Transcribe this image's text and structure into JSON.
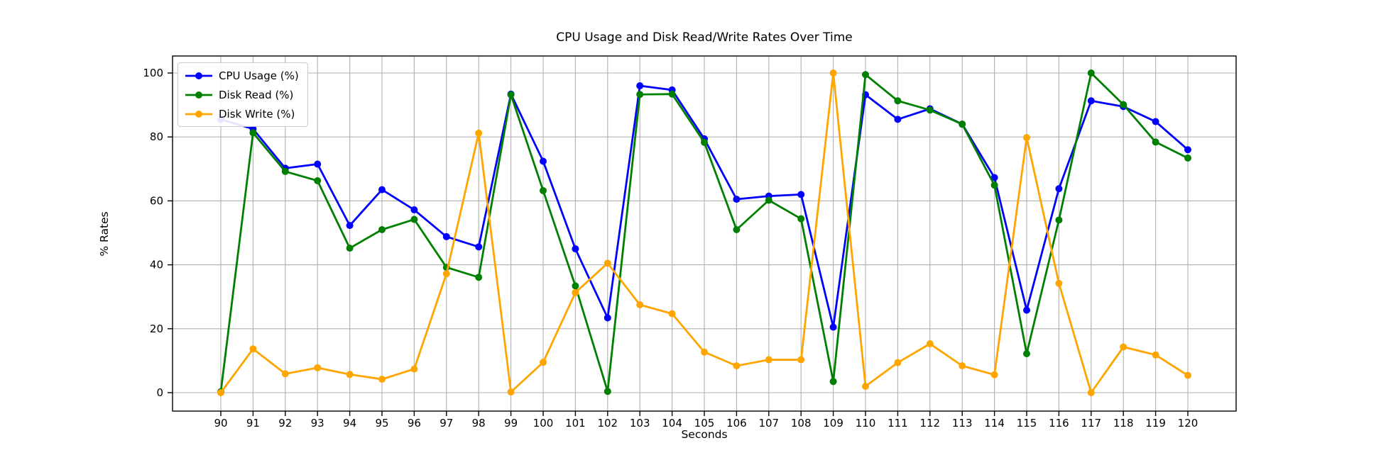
{
  "figure": {
    "background": "#ffffff"
  },
  "chart_data": {
    "type": "line",
    "title": "CPU Usage and Disk Read/Write Rates Over Time",
    "xlabel": "Seconds",
    "ylabel": "% Rates",
    "x": [
      90,
      91,
      92,
      93,
      94,
      95,
      96,
      97,
      98,
      99,
      100,
      101,
      102,
      103,
      104,
      105,
      106,
      107,
      108,
      109,
      110,
      111,
      112,
      113,
      114,
      115,
      116,
      117,
      118,
      119,
      120
    ],
    "xticks": [
      90,
      91,
      92,
      93,
      94,
      95,
      96,
      97,
      98,
      99,
      100,
      101,
      102,
      103,
      104,
      105,
      106,
      107,
      108,
      109,
      110,
      111,
      112,
      113,
      114,
      115,
      116,
      117,
      118,
      119,
      120
    ],
    "yticks": [
      0,
      20,
      40,
      60,
      80,
      100
    ],
    "xlim": [
      88.5,
      121.5
    ],
    "ylim": [
      -5.8,
      105.3
    ],
    "grid": true,
    "legend_position": "upper left",
    "series": [
      {
        "name": "CPU Usage (%)",
        "color": "#0000ff",
        "values": [
          85.5,
          82.5,
          70.2,
          71.5,
          52.3,
          63.5,
          57.2,
          48.8,
          45.6,
          93.4,
          72.4,
          45.0,
          23.4,
          96.0,
          94.7,
          79.4,
          60.5,
          61.5,
          62.0,
          20.5,
          93.2,
          85.5,
          88.8,
          84.0,
          67.3,
          25.8,
          63.8,
          91.3,
          89.5,
          84.8,
          76.0
        ]
      },
      {
        "name": "Disk Read (%)",
        "color": "#008000",
        "values": [
          0.3,
          81.3,
          69.2,
          66.3,
          45.2,
          51.0,
          54.2,
          39.2,
          36.1,
          93.2,
          63.2,
          33.4,
          0.4,
          93.3,
          93.4,
          78.3,
          51.0,
          60.2,
          54.4,
          3.5,
          99.5,
          91.3,
          88.4,
          84.0,
          64.9,
          12.2,
          54.0,
          100.0,
          90.1,
          78.4,
          73.4
        ]
      },
      {
        "name": "Disk Write (%)",
        "color": "#ffa500",
        "values": [
          0.0,
          13.7,
          5.9,
          7.8,
          5.7,
          4.2,
          7.4,
          37.2,
          81.2,
          0.2,
          9.5,
          31.3,
          40.5,
          27.5,
          24.7,
          12.7,
          8.4,
          10.3,
          10.3,
          100.0,
          2.0,
          9.4,
          15.3,
          8.4,
          5.6,
          79.8,
          34.2,
          0.0,
          14.3,
          11.8,
          5.4
        ]
      }
    ],
    "style": {
      "grid_color": "#b0b0b0",
      "spine_color": "#000000",
      "text_color": "#000000",
      "background": "#ffffff",
      "line_width": 2.8,
      "marker_radius": 5
    }
  }
}
